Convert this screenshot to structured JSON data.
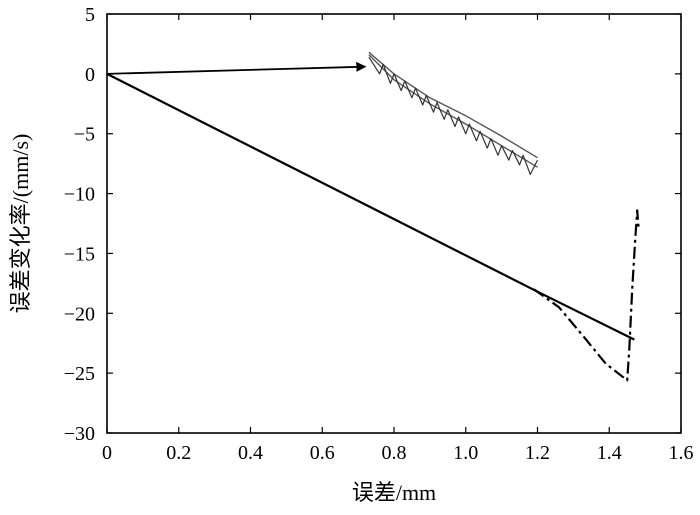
{
  "chart_data": {
    "type": "line",
    "title": "",
    "xlabel": "误差/mm",
    "ylabel": "误差变化率/(mm/s)",
    "xlim": [
      0,
      1.6
    ],
    "ylim": [
      -30,
      5
    ],
    "grid": false,
    "legend": "none",
    "x_ticks": [
      {
        "value": 0,
        "label": "0"
      },
      {
        "value": 0.2,
        "label": "0.2"
      },
      {
        "value": 0.4,
        "label": "0.4"
      },
      {
        "value": 0.6,
        "label": "0.6"
      },
      {
        "value": 0.8,
        "label": "0.8"
      },
      {
        "value": 1.0,
        "label": "1.0"
      },
      {
        "value": 1.2,
        "label": "1.2"
      },
      {
        "value": 1.4,
        "label": "1.4"
      },
      {
        "value": 1.6,
        "label": "1.6"
      }
    ],
    "y_ticks": [
      {
        "value": 5,
        "label": "5"
      },
      {
        "value": 0,
        "label": "0"
      },
      {
        "value": -5,
        "label": "−5"
      },
      {
        "value": -10,
        "label": "−10"
      },
      {
        "value": -15,
        "label": "−15"
      },
      {
        "value": -20,
        "label": "−20"
      },
      {
        "value": -25,
        "label": "−25"
      },
      {
        "value": -30,
        "label": "−30"
      }
    ],
    "series": [
      {
        "style": "solid",
        "color": "#000000",
        "width": 2.2,
        "points": [
          [
            0,
            0
          ],
          [
            1.2,
            -18.2
          ],
          [
            1.47,
            -22.2
          ]
        ]
      },
      {
        "style": "dashdot",
        "color": "#000000",
        "width": 2.2,
        "points": [
          [
            1.19,
            -18.0
          ],
          [
            1.26,
            -19.5
          ],
          [
            1.33,
            -22.0
          ],
          [
            1.39,
            -24.2
          ],
          [
            1.45,
            -25.6
          ],
          [
            1.456,
            -23.0
          ],
          [
            1.464,
            -18.0
          ],
          [
            1.472,
            -14.0
          ],
          [
            1.478,
            -11.4
          ],
          [
            1.482,
            -13.0
          ]
        ]
      },
      {
        "style": "solid",
        "color": "#555555",
        "width": 1.4,
        "points": [
          [
            0.73,
            1.8
          ],
          [
            0.8,
            0.0
          ],
          [
            0.9,
            -2.0
          ],
          [
            1.0,
            -3.5
          ],
          [
            1.1,
            -5.2
          ],
          [
            1.2,
            -7.0
          ]
        ]
      },
      {
        "style": "solid",
        "color": "#555555",
        "width": 1.4,
        "points": [
          [
            0.73,
            1.6
          ],
          [
            0.8,
            -0.5
          ],
          [
            0.9,
            -2.5
          ],
          [
            1.0,
            -4.2
          ],
          [
            1.1,
            -6.0
          ],
          [
            1.2,
            -7.8
          ]
        ]
      },
      {
        "style": "solid",
        "color": "#333333",
        "width": 1.2,
        "points": [
          [
            0.73,
            1.4
          ],
          [
            0.76,
            0.0
          ],
          [
            0.77,
            0.8
          ],
          [
            0.79,
            -0.8
          ],
          [
            0.8,
            0.0
          ],
          [
            0.82,
            -1.4
          ],
          [
            0.83,
            -0.6
          ],
          [
            0.85,
            -2.0
          ],
          [
            0.86,
            -1.2
          ],
          [
            0.88,
            -2.6
          ],
          [
            0.89,
            -1.8
          ],
          [
            0.91,
            -3.2
          ],
          [
            0.92,
            -2.4
          ],
          [
            0.94,
            -3.8
          ],
          [
            0.95,
            -3.0
          ],
          [
            0.97,
            -4.4
          ],
          [
            0.98,
            -3.6
          ],
          [
            1.0,
            -5.0
          ],
          [
            1.01,
            -4.2
          ],
          [
            1.03,
            -5.6
          ],
          [
            1.04,
            -4.8
          ],
          [
            1.06,
            -6.2
          ],
          [
            1.07,
            -5.4
          ],
          [
            1.09,
            -6.8
          ],
          [
            1.1,
            -6.0
          ],
          [
            1.12,
            -7.2
          ],
          [
            1.13,
            -6.4
          ],
          [
            1.15,
            -7.6
          ],
          [
            1.16,
            -6.8
          ],
          [
            1.18,
            -8.4
          ],
          [
            1.2,
            -7.2
          ]
        ]
      }
    ],
    "annotations": [
      {
        "type": "arrow",
        "from": [
          0,
          0
        ],
        "to": [
          0.72,
          0.6
        ]
      }
    ]
  }
}
